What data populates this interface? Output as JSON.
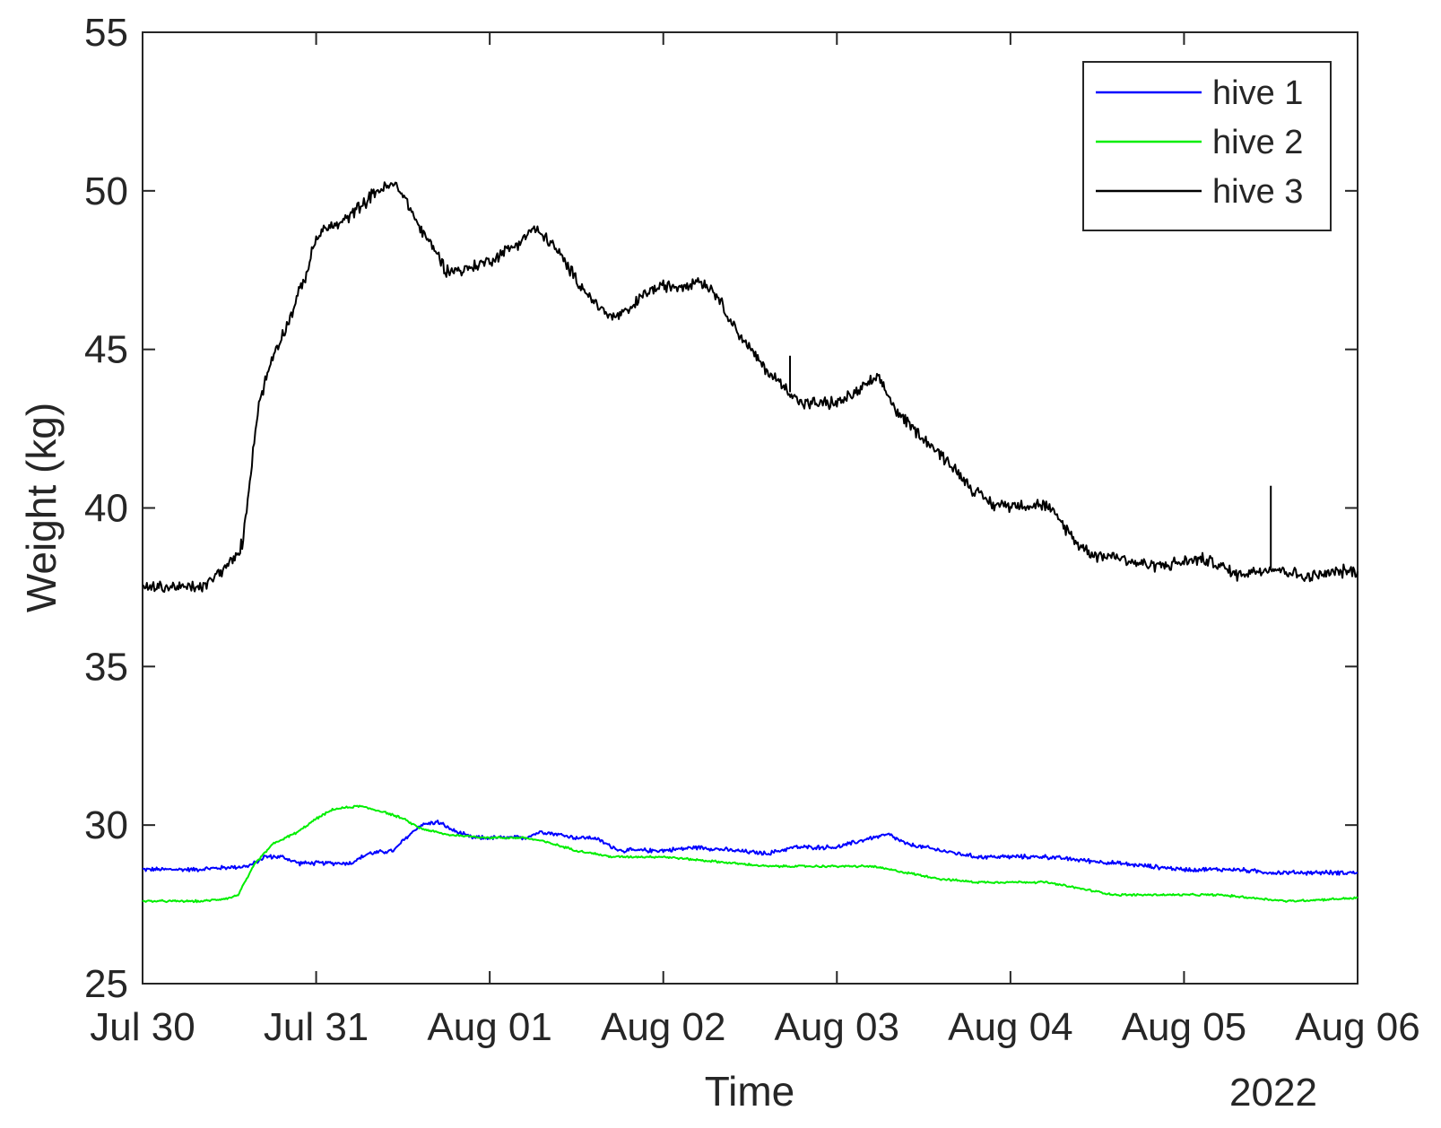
{
  "chart_data": {
    "type": "line",
    "title": "",
    "xlabel": "Time",
    "ylabel": "Weight (kg)",
    "year_label": "2022",
    "x_categories": [
      "Jul 30",
      "Jul 31",
      "Aug 01",
      "Aug 02",
      "Aug 03",
      "Aug 04",
      "Aug 05",
      "Aug 06"
    ],
    "xlim": [
      0,
      7
    ],
    "ylim": [
      25,
      55
    ],
    "yticks": [
      25,
      30,
      35,
      40,
      45,
      50,
      55
    ],
    "legend_position": "top-right",
    "grid": false,
    "series": [
      {
        "name": "hive 1",
        "color": "#0000ff",
        "noise": 0.12,
        "points": [
          [
            0,
            28.6
          ],
          [
            0.3,
            28.6
          ],
          [
            0.6,
            28.7
          ],
          [
            0.65,
            28.8
          ],
          [
            0.7,
            29.0
          ],
          [
            0.8,
            29.0
          ],
          [
            0.9,
            28.8
          ],
          [
            1.0,
            28.8
          ],
          [
            1.1,
            28.8
          ],
          [
            1.2,
            28.8
          ],
          [
            1.3,
            29.1
          ],
          [
            1.45,
            29.2
          ],
          [
            1.5,
            29.5
          ],
          [
            1.6,
            30.0
          ],
          [
            1.7,
            30.1
          ],
          [
            1.8,
            29.8
          ],
          [
            1.9,
            29.6
          ],
          [
            2.0,
            29.6
          ],
          [
            2.2,
            29.6
          ],
          [
            2.3,
            29.8
          ],
          [
            2.4,
            29.7
          ],
          [
            2.5,
            29.6
          ],
          [
            2.6,
            29.6
          ],
          [
            2.75,
            29.2
          ],
          [
            3.0,
            29.2
          ],
          [
            3.2,
            29.3
          ],
          [
            3.4,
            29.2
          ],
          [
            3.6,
            29.1
          ],
          [
            3.75,
            29.3
          ],
          [
            4.0,
            29.3
          ],
          [
            4.2,
            29.6
          ],
          [
            4.3,
            29.7
          ],
          [
            4.4,
            29.4
          ],
          [
            4.6,
            29.2
          ],
          [
            4.8,
            29.0
          ],
          [
            5.0,
            29.0
          ],
          [
            5.2,
            29.0
          ],
          [
            5.4,
            28.9
          ],
          [
            5.6,
            28.8
          ],
          [
            5.8,
            28.7
          ],
          [
            6.0,
            28.6
          ],
          [
            6.3,
            28.6
          ],
          [
            6.5,
            28.5
          ],
          [
            6.7,
            28.5
          ],
          [
            7.0,
            28.5
          ]
        ]
      },
      {
        "name": "hive 2",
        "color": "#00ee00",
        "noise": 0.06,
        "points": [
          [
            0,
            27.6
          ],
          [
            0.2,
            27.6
          ],
          [
            0.35,
            27.6
          ],
          [
            0.5,
            27.7
          ],
          [
            0.55,
            27.8
          ],
          [
            0.6,
            28.3
          ],
          [
            0.65,
            28.8
          ],
          [
            0.75,
            29.4
          ],
          [
            0.9,
            29.8
          ],
          [
            1.0,
            30.2
          ],
          [
            1.1,
            30.5
          ],
          [
            1.25,
            30.6
          ],
          [
            1.4,
            30.4
          ],
          [
            1.5,
            30.2
          ],
          [
            1.6,
            29.9
          ],
          [
            1.75,
            29.7
          ],
          [
            2.0,
            29.6
          ],
          [
            2.2,
            29.6
          ],
          [
            2.3,
            29.5
          ],
          [
            2.5,
            29.2
          ],
          [
            2.7,
            29.0
          ],
          [
            3.0,
            29.0
          ],
          [
            3.2,
            28.9
          ],
          [
            3.4,
            28.8
          ],
          [
            3.6,
            28.7
          ],
          [
            3.8,
            28.7
          ],
          [
            4.0,
            28.7
          ],
          [
            4.2,
            28.7
          ],
          [
            4.4,
            28.5
          ],
          [
            4.6,
            28.3
          ],
          [
            4.8,
            28.2
          ],
          [
            5.0,
            28.2
          ],
          [
            5.2,
            28.2
          ],
          [
            5.4,
            28.0
          ],
          [
            5.6,
            27.8
          ],
          [
            5.8,
            27.8
          ],
          [
            6.0,
            27.8
          ],
          [
            6.2,
            27.8
          ],
          [
            6.4,
            27.7
          ],
          [
            6.6,
            27.6
          ],
          [
            7.0,
            27.7
          ]
        ]
      },
      {
        "name": "hive 3",
        "color": "#000000",
        "noise": 0.35,
        "points": [
          [
            0,
            37.5
          ],
          [
            0.2,
            37.5
          ],
          [
            0.35,
            37.5
          ],
          [
            0.45,
            38.0
          ],
          [
            0.55,
            38.5
          ],
          [
            0.58,
            39.0
          ],
          [
            0.6,
            40.0
          ],
          [
            0.63,
            41.5
          ],
          [
            0.67,
            43.3
          ],
          [
            0.75,
            44.8
          ],
          [
            0.85,
            46.0
          ],
          [
            0.95,
            47.5
          ],
          [
            1.0,
            48.5
          ],
          [
            1.05,
            48.8
          ],
          [
            1.15,
            49.0
          ],
          [
            1.25,
            49.5
          ],
          [
            1.35,
            50.0
          ],
          [
            1.45,
            50.2
          ],
          [
            1.5,
            49.9
          ],
          [
            1.6,
            48.8
          ],
          [
            1.7,
            48.0
          ],
          [
            1.75,
            47.5
          ],
          [
            1.85,
            47.5
          ],
          [
            2.0,
            47.8
          ],
          [
            2.15,
            48.3
          ],
          [
            2.25,
            48.8
          ],
          [
            2.35,
            48.4
          ],
          [
            2.5,
            47.2
          ],
          [
            2.6,
            46.5
          ],
          [
            2.7,
            46.0
          ],
          [
            2.8,
            46.2
          ],
          [
            2.9,
            46.8
          ],
          [
            3.0,
            47.0
          ],
          [
            3.1,
            47.0
          ],
          [
            3.2,
            47.2
          ],
          [
            3.3,
            46.8
          ],
          [
            3.4,
            45.8
          ],
          [
            3.5,
            45.0
          ],
          [
            3.6,
            44.3
          ],
          [
            3.7,
            43.8
          ],
          [
            3.8,
            43.3
          ],
          [
            4.0,
            43.3
          ],
          [
            4.1,
            43.6
          ],
          [
            4.2,
            44.0
          ],
          [
            4.25,
            44.0
          ],
          [
            4.35,
            43.0
          ],
          [
            4.5,
            42.2
          ],
          [
            4.65,
            41.4
          ],
          [
            4.8,
            40.5
          ],
          [
            4.9,
            40.1
          ],
          [
            5.0,
            40.1
          ],
          [
            5.1,
            40.1
          ],
          [
            5.2,
            40.1
          ],
          [
            5.3,
            39.5
          ],
          [
            5.4,
            38.8
          ],
          [
            5.5,
            38.5
          ],
          [
            5.6,
            38.5
          ],
          [
            5.7,
            38.3
          ],
          [
            5.8,
            38.2
          ],
          [
            5.9,
            38.2
          ],
          [
            6.0,
            38.3
          ],
          [
            6.1,
            38.4
          ],
          [
            6.2,
            38.2
          ],
          [
            6.3,
            37.9
          ],
          [
            6.5,
            38.1
          ],
          [
            6.6,
            38.0
          ],
          [
            6.7,
            37.8
          ],
          [
            6.8,
            37.9
          ],
          [
            6.9,
            38.0
          ],
          [
            7.0,
            38.0
          ]
        ],
        "spikes": [
          [
            3.73,
            44.8
          ],
          [
            6.5,
            40.7
          ]
        ]
      }
    ]
  }
}
